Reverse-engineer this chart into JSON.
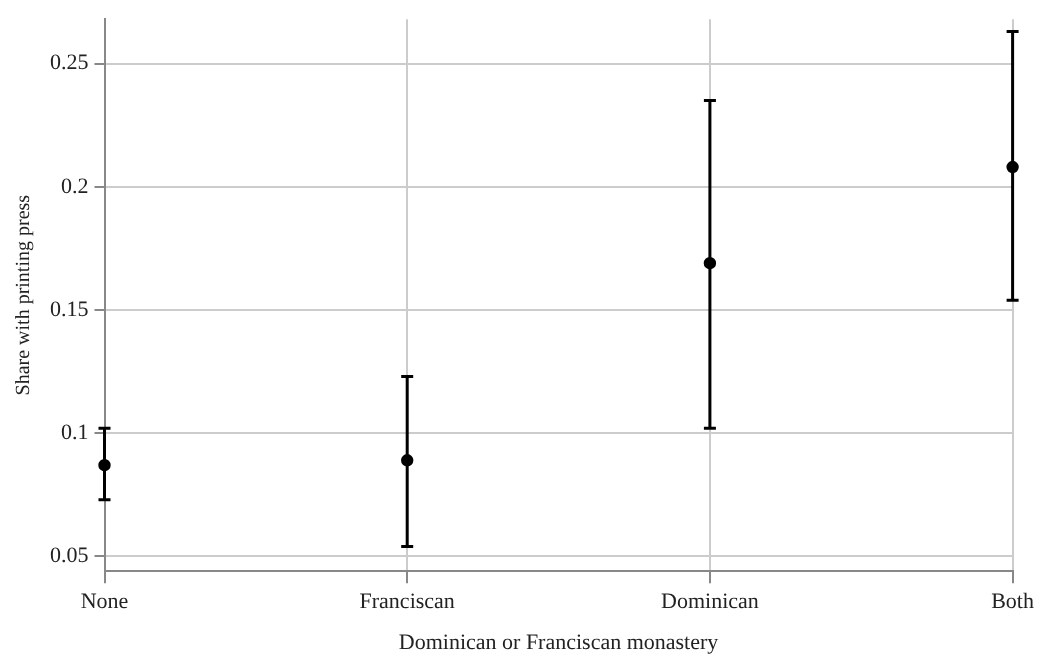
{
  "chart_data": {
    "type": "scatter",
    "xlabel": "Dominican or Franciscan monastery",
    "ylabel": "Share with printing press",
    "categories": [
      "None",
      "Franciscan",
      "Dominican",
      "Both"
    ],
    "series": [
      {
        "color": "#000000",
        "values": [
          0.087,
          0.089,
          0.169,
          0.208
        ],
        "errors": [
          [
            0.073,
            0.102
          ],
          [
            0.054,
            0.123
          ],
          [
            0.102,
            0.235
          ],
          [
            0.154,
            0.263
          ]
        ]
      }
    ],
    "ylim": [
      0.044,
      0.268
    ],
    "yticks": [
      0.05,
      0.1,
      0.15,
      0.2,
      0.25
    ],
    "grid": true,
    "marker": "circle"
  }
}
